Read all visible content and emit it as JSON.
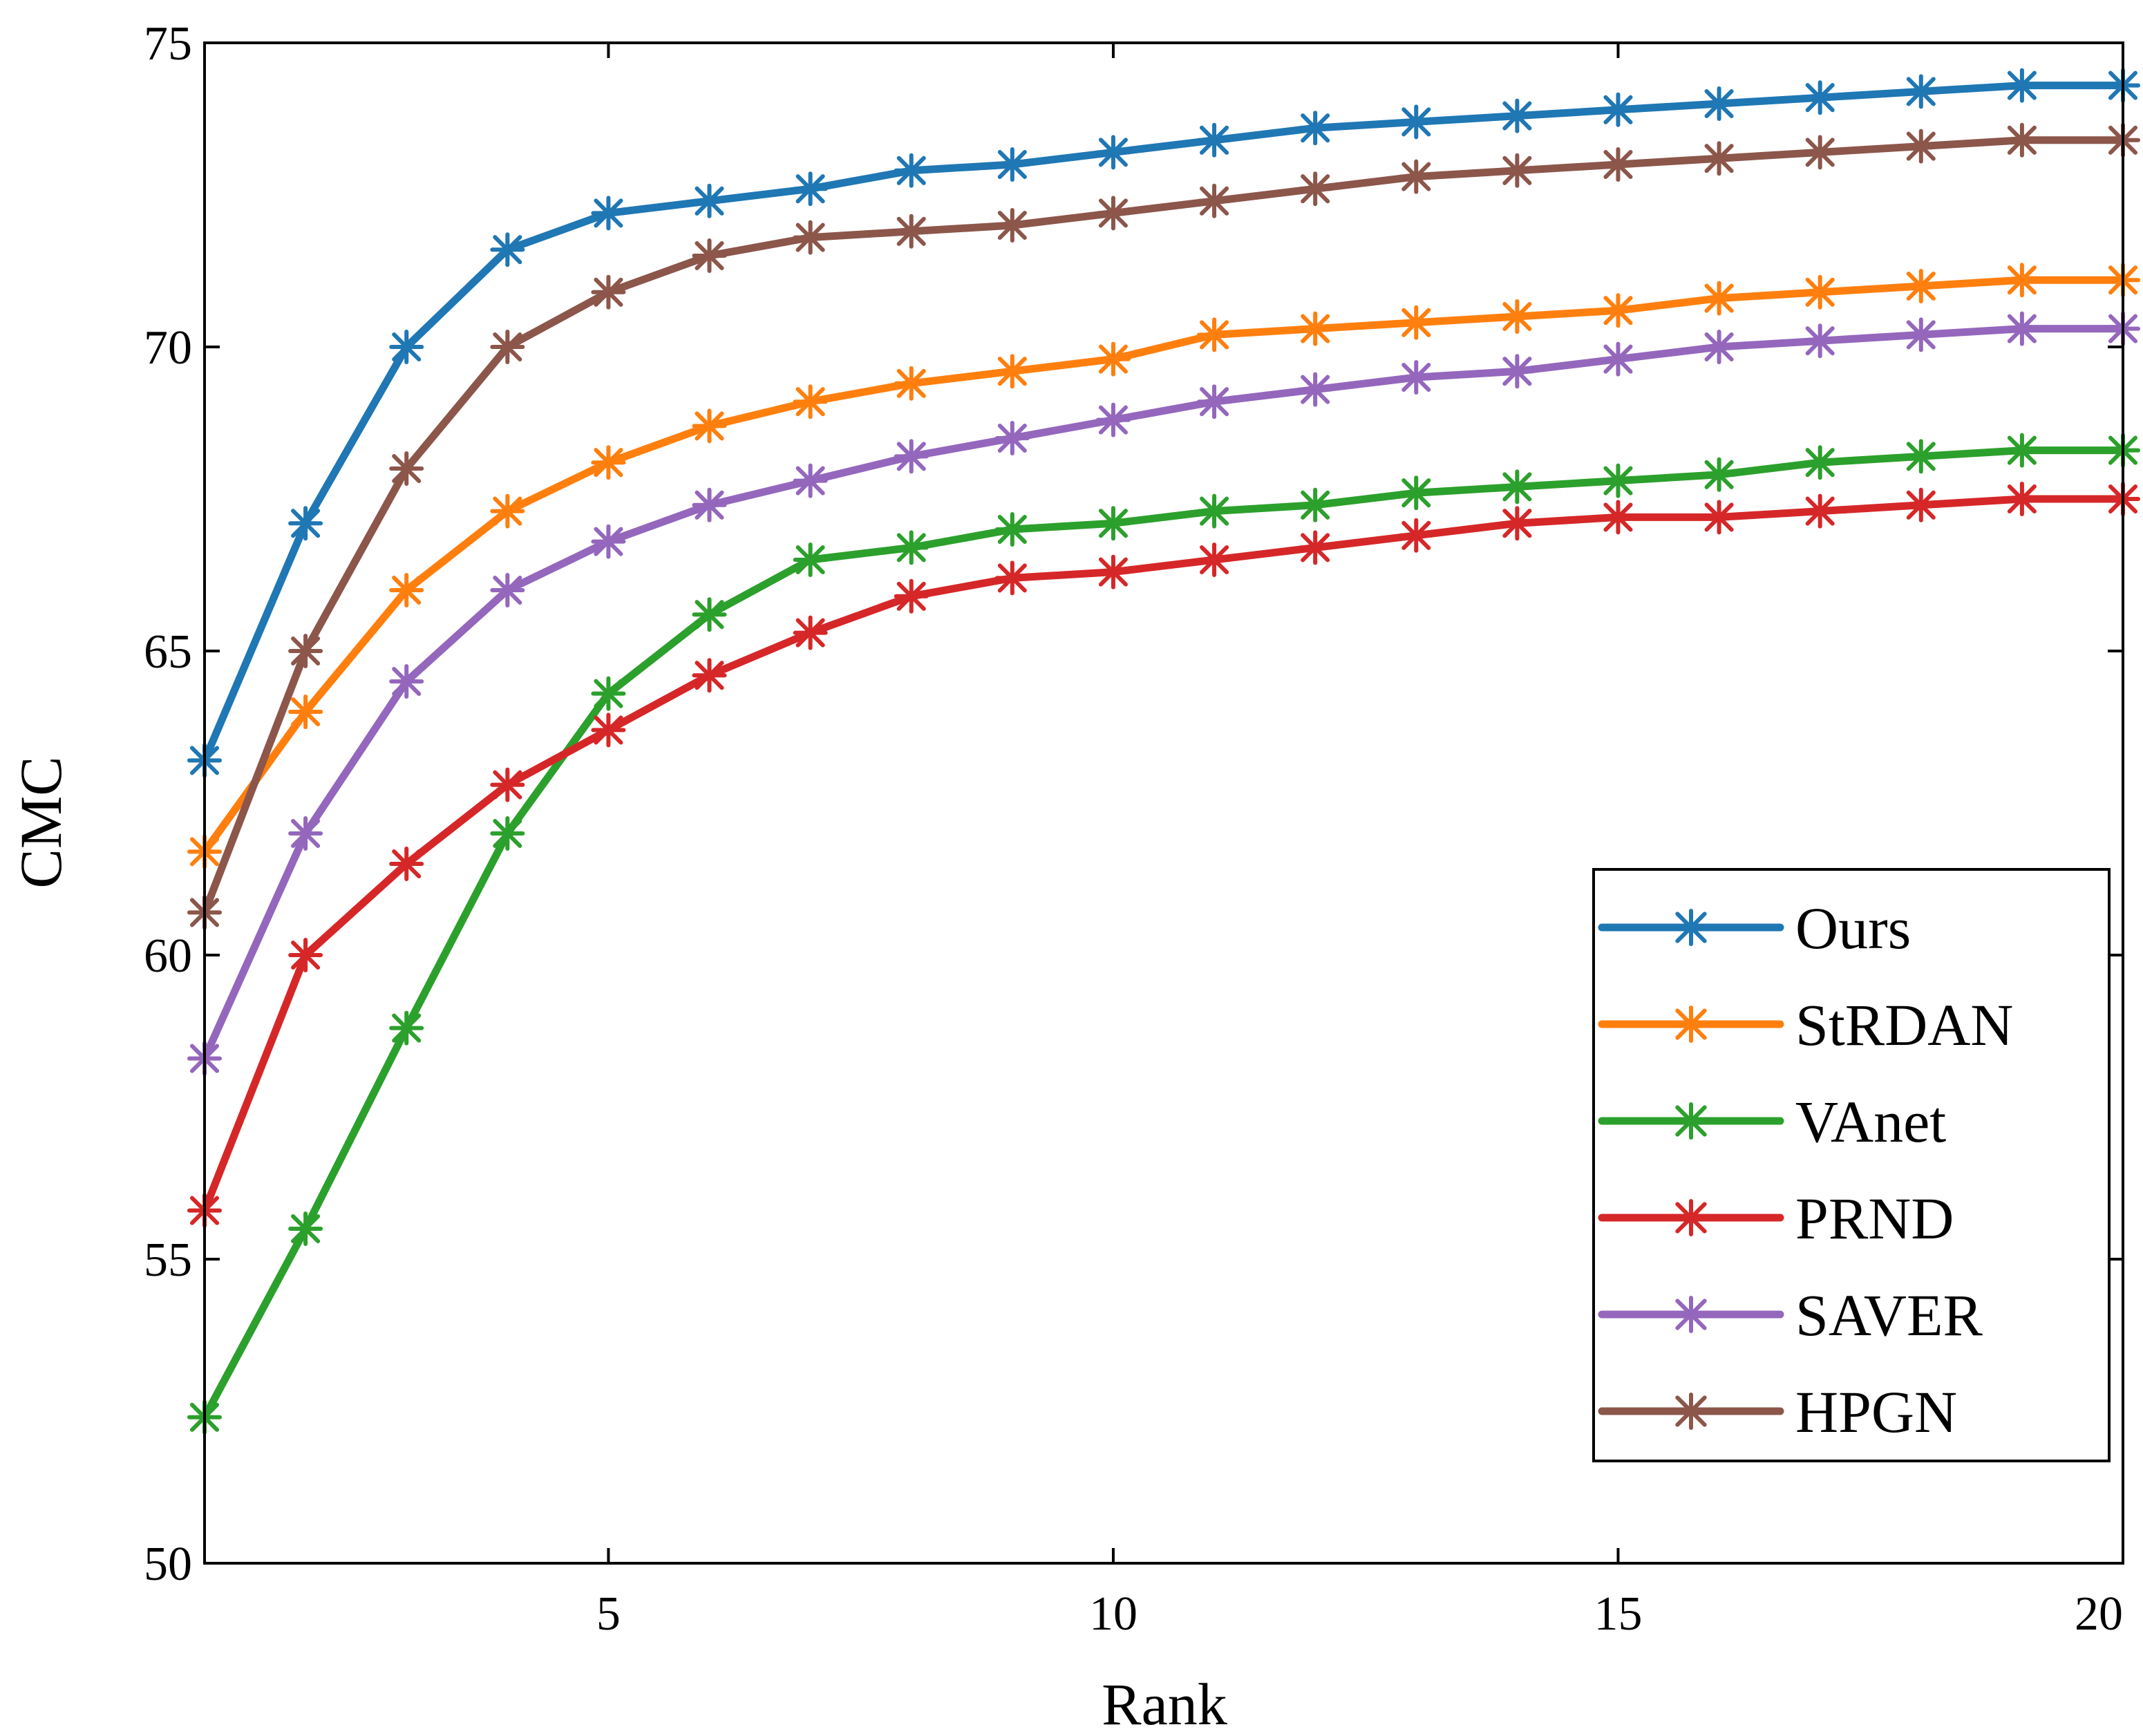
{
  "chart_data": {
    "type": "line",
    "title": "",
    "xlabel": "Rank",
    "ylabel": "CMC",
    "xlim": [
      1,
      20
    ],
    "ylim": [
      50,
      75
    ],
    "xticks": [
      5,
      10,
      15,
      20
    ],
    "yticks": [
      50,
      55,
      60,
      65,
      70,
      75
    ],
    "grid": false,
    "legend_position": "bottom-right",
    "x": [
      1,
      2,
      3,
      4,
      5,
      6,
      7,
      8,
      9,
      10,
      11,
      12,
      13,
      14,
      15,
      16,
      17,
      18,
      19,
      20
    ],
    "series": [
      {
        "name": "Ours",
        "color": "#1f77b4",
        "values": [
          63.2,
          67.1,
          70.0,
          71.6,
          72.2,
          72.4,
          72.6,
          72.9,
          73.0,
          73.2,
          73.4,
          73.6,
          73.7,
          73.8,
          73.9,
          74.0,
          74.1,
          74.2,
          74.3,
          74.3
        ]
      },
      {
        "name": "StRDAN",
        "color": "#ff7f0e",
        "values": [
          61.7,
          64.0,
          66.0,
          67.3,
          68.1,
          68.7,
          69.1,
          69.4,
          69.6,
          69.8,
          70.2,
          70.3,
          70.4,
          70.5,
          70.6,
          70.8,
          70.9,
          71.0,
          71.1,
          71.1
        ]
      },
      {
        "name": "VAnet",
        "color": "#2ca02c",
        "values": [
          52.4,
          55.5,
          58.8,
          62.0,
          64.3,
          65.6,
          66.5,
          66.7,
          67.0,
          67.1,
          67.3,
          67.4,
          67.6,
          67.7,
          67.8,
          67.9,
          68.1,
          68.2,
          68.3,
          68.3
        ]
      },
      {
        "name": "PRND",
        "color": "#d62728",
        "values": [
          55.8,
          60.0,
          61.5,
          62.8,
          63.7,
          64.6,
          65.3,
          65.9,
          66.2,
          66.3,
          66.5,
          66.7,
          66.9,
          67.1,
          67.2,
          67.2,
          67.3,
          67.4,
          67.5,
          67.5
        ]
      },
      {
        "name": "SAVER",
        "color": "#9467bd",
        "values": [
          58.3,
          62.0,
          64.5,
          66.0,
          66.8,
          67.4,
          67.8,
          68.2,
          68.5,
          68.8,
          69.1,
          69.3,
          69.5,
          69.6,
          69.8,
          70.0,
          70.1,
          70.2,
          70.3,
          70.3
        ]
      },
      {
        "name": "HPGN",
        "color": "#8c564b",
        "values": [
          60.7,
          65.0,
          68.0,
          70.0,
          70.9,
          71.5,
          71.8,
          71.9,
          72.0,
          72.2,
          72.4,
          72.6,
          72.8,
          72.9,
          73.0,
          73.1,
          73.2,
          73.3,
          73.4,
          73.4
        ]
      }
    ]
  }
}
